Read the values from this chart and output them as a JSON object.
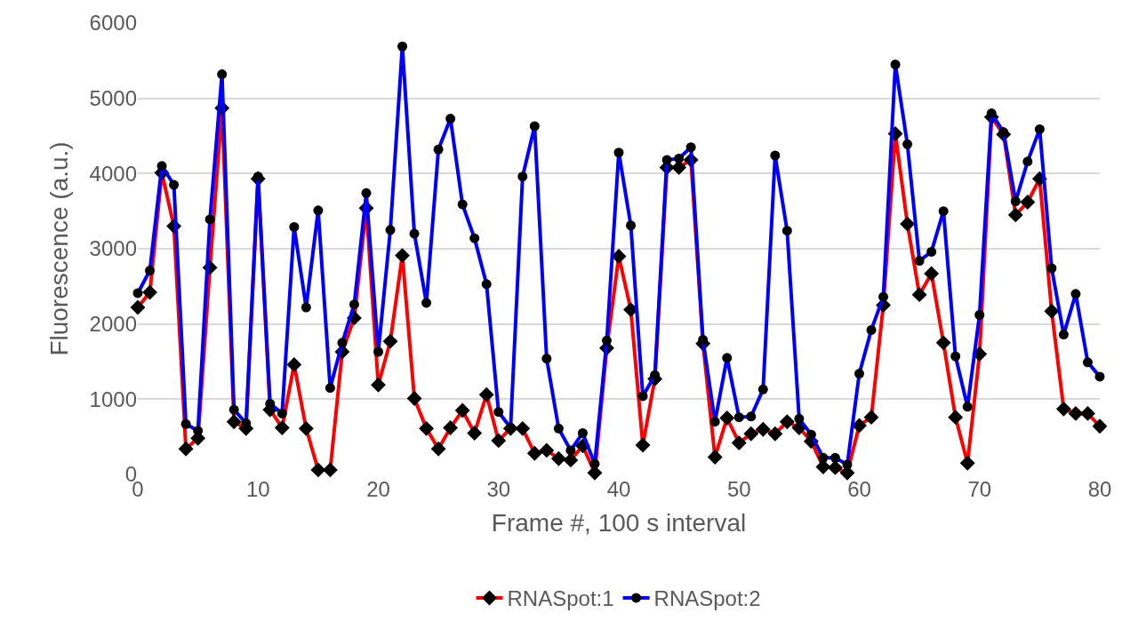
{
  "chart_data": {
    "type": "line",
    "xlabel": "Frame #, 100 s interval",
    "ylabel": "Fluorescence (a.u.)",
    "x": [
      0,
      1,
      2,
      3,
      4,
      5,
      6,
      7,
      8,
      9,
      10,
      11,
      12,
      13,
      14,
      15,
      16,
      17,
      18,
      19,
      20,
      21,
      22,
      23,
      24,
      25,
      26,
      27,
      28,
      29,
      30,
      31,
      32,
      33,
      34,
      35,
      36,
      37,
      38,
      39,
      40,
      41,
      42,
      43,
      44,
      45,
      46,
      47,
      48,
      49,
      50,
      51,
      52,
      53,
      54,
      55,
      56,
      57,
      58,
      59,
      60,
      61,
      62,
      63,
      64,
      65,
      66,
      67,
      68,
      69,
      70,
      71,
      72,
      73,
      74,
      75,
      76,
      77,
      78,
      79,
      80
    ],
    "series": [
      {
        "name": "RNASpot:1",
        "color": "#ff0000",
        "marker": "diamond",
        "values": [
          2220,
          2420,
          4010,
          3300,
          340,
          480,
          2750,
          4870,
          700,
          610,
          3930,
          860,
          620,
          1460,
          610,
          60,
          60,
          1630,
          2080,
          3540,
          1190,
          1770,
          2910,
          1010,
          610,
          340,
          620,
          850,
          550,
          1060,
          450,
          610,
          610,
          280,
          320,
          210,
          190,
          380,
          20,
          1680,
          2900,
          2190,
          390,
          1270,
          4080,
          4080,
          4180,
          1740,
          230,
          750,
          420,
          540,
          600,
          540,
          700,
          620,
          440,
          100,
          90,
          20,
          650,
          760,
          2250,
          4530,
          3330,
          2390,
          2670,
          1750,
          760,
          150,
          1600,
          4750,
          4520,
          3450,
          3620,
          3930,
          2170,
          870,
          810,
          810,
          640
        ]
      },
      {
        "name": "RNASpot:2",
        "color": "#0000ff",
        "marker": "circle",
        "values": [
          2410,
          2710,
          4100,
          3850,
          670,
          580,
          3390,
          5320,
          860,
          680,
          3960,
          940,
          810,
          3290,
          2220,
          3510,
          1150,
          1750,
          2260,
          3740,
          1630,
          3250,
          5690,
          3200,
          2280,
          4320,
          4730,
          3590,
          3140,
          2530,
          830,
          620,
          3960,
          4630,
          1540,
          610,
          320,
          550,
          140,
          1780,
          4280,
          3310,
          1040,
          1320,
          4180,
          4200,
          4350,
          1790,
          700,
          1550,
          760,
          770,
          1130,
          4240,
          3240,
          740,
          530,
          220,
          220,
          130,
          1340,
          1920,
          2360,
          5450,
          4390,
          2840,
          2960,
          3500,
          1570,
          900,
          2120,
          4800,
          4550,
          3630,
          4160,
          4590,
          2740,
          1860,
          2400,
          1490,
          1300
        ]
      }
    ],
    "xlim": [
      0,
      80
    ],
    "xticks": [
      0,
      10,
      20,
      30,
      40,
      50,
      60,
      70,
      80
    ],
    "ylim": [
      0,
      6000
    ],
    "yticks": [
      0,
      1000,
      2000,
      3000,
      4000,
      5000,
      6000
    ],
    "grid": "y",
    "legend": "bottom",
    "line_style": "solid"
  }
}
